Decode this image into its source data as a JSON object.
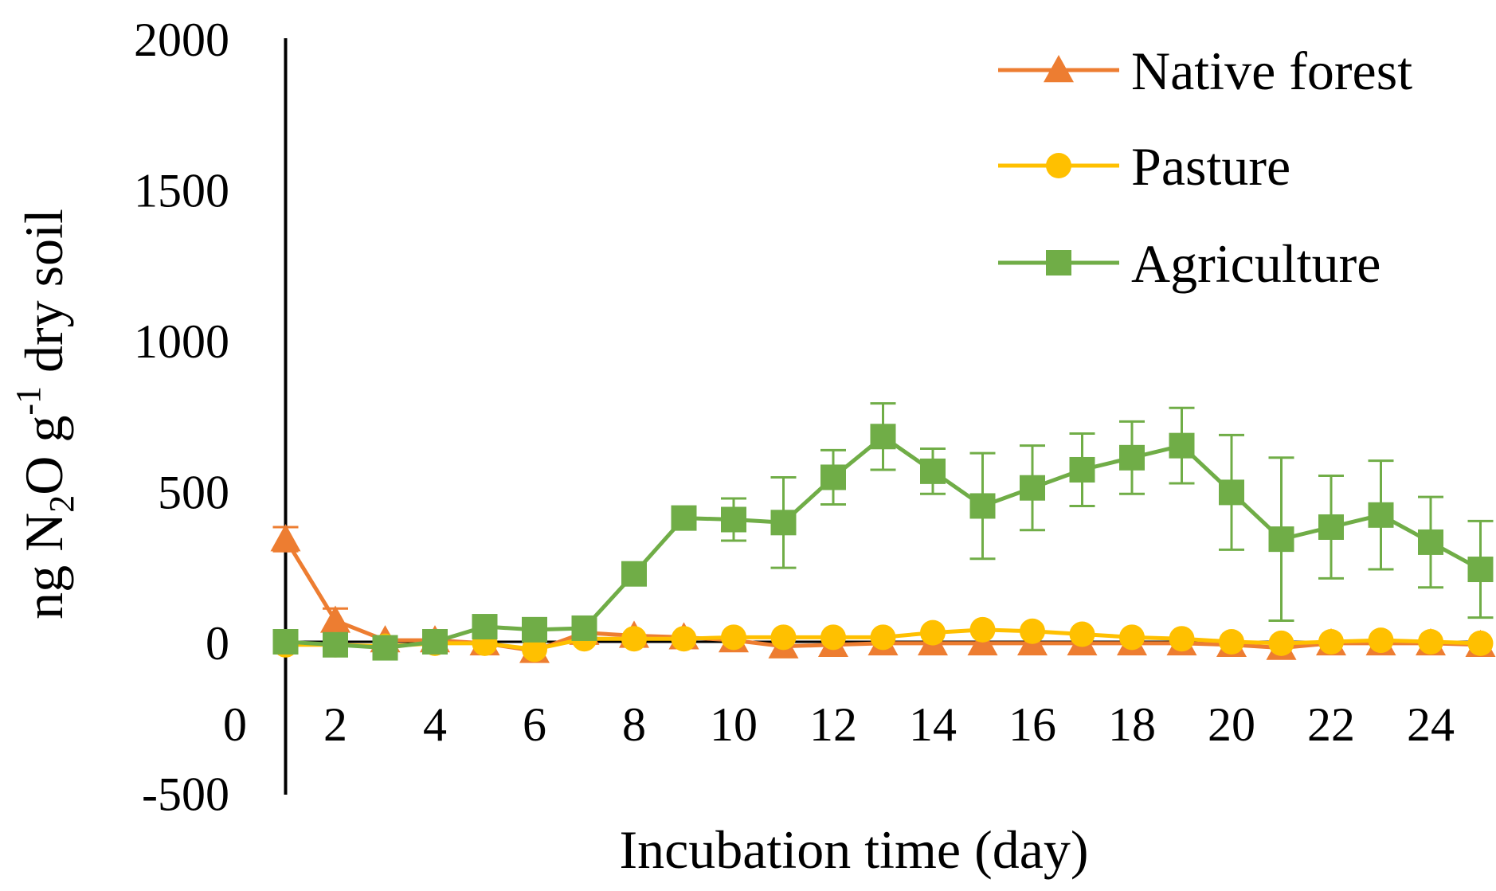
{
  "chart_data": {
    "type": "line",
    "xlabel": "Incubation time (day)",
    "ylabel": {
      "parts": [
        {
          "text": "ng N",
          "sub": false,
          "sup": false
        },
        {
          "text": "2",
          "sub": true,
          "sup": false
        },
        {
          "text": "O g",
          "sub": false,
          "sup": false
        },
        {
          "text": "-1",
          "sub": false,
          "sup": true
        },
        {
          "text": " dry soil",
          "sub": false,
          "sup": false
        }
      ]
    },
    "ylim": [
      -500,
      2000
    ],
    "yticks": [
      "2000",
      "1500",
      "1000",
      "500",
      "0",
      "-500"
    ],
    "ytick_values": [
      2000,
      1500,
      1000,
      500,
      0,
      -500
    ],
    "xlim": [
      0,
      25
    ],
    "xticks": [
      "0",
      "2",
      "4",
      "6",
      "8",
      "10",
      "12",
      "14",
      "16",
      "18",
      "20",
      "22",
      "24"
    ],
    "xtick_values": [
      0,
      2,
      4,
      6,
      8,
      10,
      12,
      14,
      16,
      18,
      20,
      22,
      24
    ],
    "x": [
      1,
      2,
      3,
      4,
      5,
      6,
      7,
      8,
      9,
      10,
      11,
      12,
      13,
      14,
      15,
      16,
      17,
      18,
      19,
      20,
      21,
      22,
      23,
      24,
      25
    ],
    "legend_position": "top-right",
    "series": [
      {
        "name": "Native forest",
        "color": "#ED7D31",
        "marker": "triangle",
        "values": [
          340,
          70,
          5,
          5,
          -5,
          -30,
          30,
          20,
          15,
          5,
          -15,
          -10,
          -5,
          -5,
          -5,
          -5,
          -5,
          -5,
          -5,
          -10,
          -20,
          -5,
          -5,
          -5,
          -10
        ],
        "errors": [
          40,
          40,
          0,
          0,
          0,
          0,
          0,
          0,
          0,
          0,
          0,
          0,
          0,
          0,
          0,
          0,
          0,
          0,
          0,
          0,
          0,
          0,
          0,
          0,
          0
        ]
      },
      {
        "name": "Pasture",
        "color": "#FFC000",
        "marker": "circle",
        "values": [
          -10,
          -10,
          -15,
          -5,
          -5,
          -25,
          10,
          10,
          10,
          15,
          15,
          15,
          15,
          30,
          40,
          35,
          25,
          15,
          10,
          0,
          -5,
          0,
          5,
          0,
          -5
        ],
        "errors": [
          0,
          0,
          0,
          0,
          0,
          0,
          0,
          0,
          0,
          0,
          0,
          0,
          0,
          0,
          0,
          0,
          0,
          0,
          0,
          0,
          0,
          0,
          0,
          0,
          0
        ]
      },
      {
        "name": "Agriculture",
        "color": "#70AD47",
        "marker": "square",
        "values": [
          0,
          -10,
          -20,
          0,
          50,
          40,
          45,
          225,
          410,
          405,
          395,
          545,
          680,
          565,
          450,
          510,
          570,
          610,
          650,
          495,
          340,
          380,
          420,
          330,
          240
        ],
        "errors": [
          0,
          0,
          0,
          0,
          0,
          0,
          0,
          0,
          0,
          70,
          150,
          90,
          110,
          75,
          175,
          140,
          120,
          120,
          125,
          190,
          270,
          170,
          180,
          150,
          160
        ]
      }
    ]
  }
}
